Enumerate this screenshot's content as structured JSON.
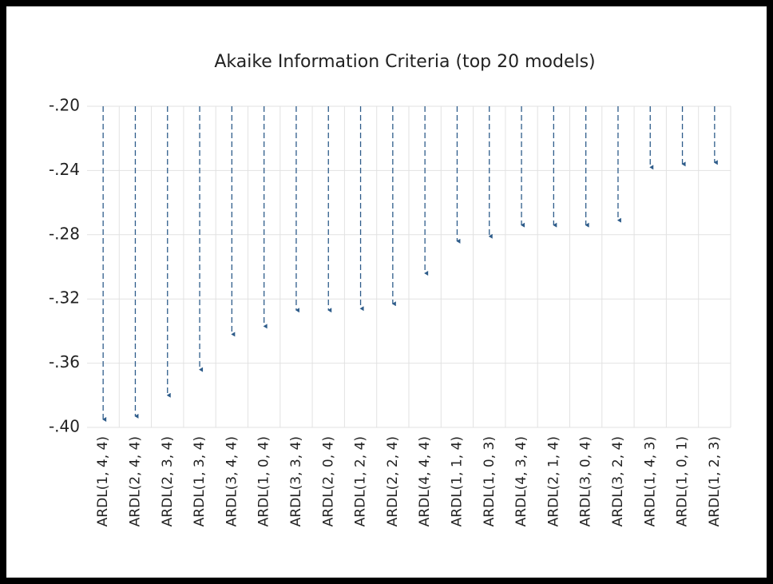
{
  "chart_data": {
    "type": "dropline",
    "title": "Akaike Information Criteria (top 20 models)",
    "categories": [
      "ARDL(1, 4, 4)",
      "ARDL(2, 4, 4)",
      "ARDL(2, 3, 4)",
      "ARDL(1, 3, 4)",
      "ARDL(3, 4, 4)",
      "ARDL(1, 0, 4)",
      "ARDL(3, 3, 4)",
      "ARDL(2, 0, 4)",
      "ARDL(1, 2, 4)",
      "ARDL(2, 2, 4)",
      "ARDL(4, 4, 4)",
      "ARDL(1, 1, 4)",
      "ARDL(1, 0, 3)",
      "ARDL(4, 3, 4)",
      "ARDL(2, 1, 4)",
      "ARDL(3, 0, 4)",
      "ARDL(3, 2, 4)",
      "ARDL(1, 4, 3)",
      "ARDL(1, 0, 1)",
      "ARDL(1, 2, 3)"
    ],
    "values": [
      -0.395,
      -0.393,
      -0.38,
      -0.364,
      -0.342,
      -0.337,
      -0.327,
      -0.327,
      -0.326,
      -0.323,
      -0.304,
      -0.284,
      -0.281,
      -0.274,
      -0.274,
      -0.274,
      -0.271,
      -0.238,
      -0.236,
      -0.235
    ],
    "color": "#2e5c8a",
    "ylim": [
      -0.4,
      -0.2
    ],
    "yticks": [
      {
        "value": -0.2,
        "label": "-.20"
      },
      {
        "value": -0.24,
        "label": "-.24"
      },
      {
        "value": -0.28,
        "label": "-.28"
      },
      {
        "value": -0.32,
        "label": "-.32"
      },
      {
        "value": -0.36,
        "label": "-.36"
      },
      {
        "value": -0.4,
        "label": "-.40"
      }
    ],
    "grid": true
  }
}
